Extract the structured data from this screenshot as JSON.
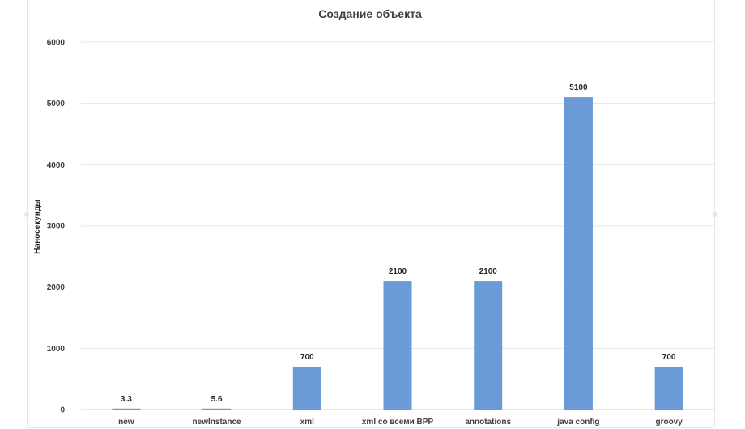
{
  "chart_data": {
    "type": "bar",
    "title": "Создание объекта",
    "xlabel": "",
    "ylabel": "Наносекунды",
    "categories": [
      "new",
      "newInstance",
      "xml",
      "xml со всеми BPP",
      "annotations",
      "java config",
      "groovy"
    ],
    "values": [
      3.3,
      5.6,
      700,
      2100,
      2100,
      5100,
      700
    ],
    "data_labels": [
      "3.3",
      "5.6",
      "700",
      "2100",
      "2100",
      "5100",
      "700"
    ],
    "ylim": [
      0,
      6000
    ],
    "yticks": [
      0,
      1000,
      2000,
      3000,
      4000,
      5000,
      6000
    ],
    "grid": true,
    "bar_color": "#6a9bd6"
  }
}
